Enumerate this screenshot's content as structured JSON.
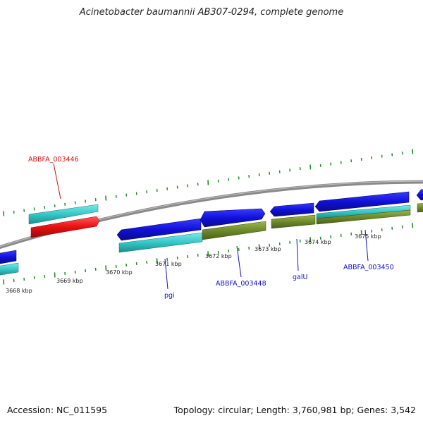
{
  "title": "Acinetobacter baumannii AB307-0294, complete genome",
  "footer": {
    "accession": "Accession: NC_011595",
    "summary": "Topology: circular; Length: 3,760,981 bp; Genes: 3,542"
  },
  "colors": {
    "backbone": "#888888",
    "tick": "#2a8a2a",
    "gene_blue": "#1515d8",
    "gene_cyan": "#35c7c7",
    "gene_red": "#e81010",
    "gene_olive": "#6d8a2a",
    "label_blue": "#1212c8",
    "label_red": "#c81010"
  },
  "kbp_labels": [
    "3668 kbp",
    "3669 kbp",
    "3670 kbp",
    "3671 kbp",
    "3672 kbp",
    "3673 kbp",
    "3674 kbp",
    "3675 kbp"
  ],
  "gene_labels": [
    {
      "text": "ABBFA_003446",
      "color": "red"
    },
    {
      "text": "pgi",
      "color": "blue"
    },
    {
      "text": "ABBFA_003448",
      "color": "blue"
    },
    {
      "text": "galU",
      "color": "blue"
    },
    {
      "text": "ABBFA_003450",
      "color": "blue"
    }
  ]
}
